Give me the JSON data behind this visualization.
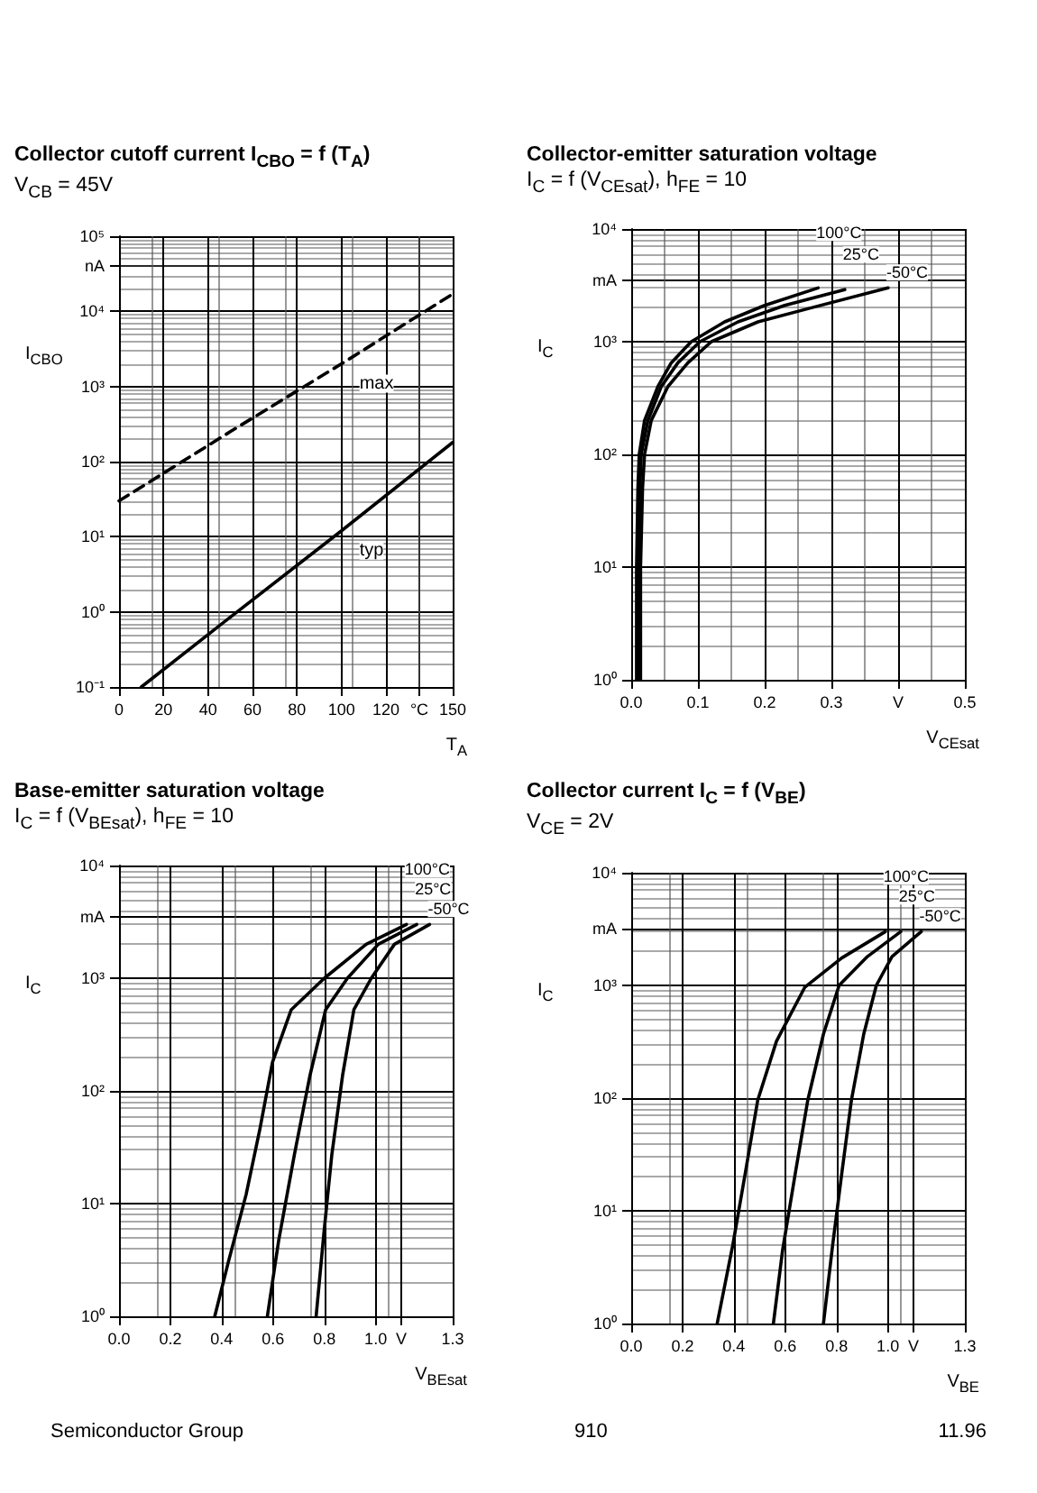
{
  "chart_data": [
    {
      "type": "line",
      "title": "Collector cutoff current I$_{CBO}$ = f (T$_{A}$)",
      "subtitle": "V$_{CB}$ = 45V",
      "xlabel": "T$_{A}$",
      "ylabel": "I$_{CBO}$",
      "log": "y",
      "grid": true,
      "marker": "none",
      "xlim": [
        0,
        150
      ],
      "ylim": [
        0.1,
        100000
      ],
      "xticks": [
        0,
        20,
        40,
        60,
        80,
        100,
        120,
        {
          "value": 135,
          "label": "°C"
        },
        150
      ],
      "yticks": [
        {
          "value": 0.1,
          "label": "10⁻¹"
        },
        {
          "value": 1,
          "label": "10⁰"
        },
        {
          "value": 10,
          "label": "10¹"
        },
        {
          "value": 100,
          "label": "10²"
        },
        {
          "value": 1000,
          "label": "10³"
        },
        {
          "value": 10000,
          "label": "10⁴"
        },
        {
          "value": 40000,
          "label": "nA"
        },
        {
          "value": 100000,
          "label": "10⁵"
        }
      ],
      "series": [
        {
          "name": "max",
          "color": "#000000",
          "line_style": "dashed",
          "x": [
            0,
            50,
            100,
            150
          ],
          "values": [
            30,
            250,
            2000,
            17000
          ]
        },
        {
          "name": "typ",
          "color": "#000000",
          "line_style": "solid",
          "x": [
            10,
            50,
            100,
            150
          ],
          "values": [
            0.1,
            0.85,
            12,
            180
          ]
        }
      ]
    },
    {
      "type": "line",
      "title": "Collector-emitter saturation voltage",
      "subtitle": "I$_{C}$ = f (V$_{CEsat}$), h$_{FE}$ = 10",
      "xlabel": "V$_{CEsat}$",
      "ylabel": "I$_{C}$",
      "log": "y",
      "grid": true,
      "marker": "none",
      "xlim": [
        0,
        0.5
      ],
      "ylim": [
        1,
        10000
      ],
      "xticks": [
        {
          "value": 0,
          "label": "0.0"
        },
        {
          "value": 0.1,
          "label": "0.1"
        },
        {
          "value": 0.2,
          "label": "0.2"
        },
        {
          "value": 0.3,
          "label": "0.3"
        },
        {
          "value": 0.4,
          "label": "V"
        },
        {
          "value": 0.5,
          "label": "0.5"
        }
      ],
      "yticks": [
        {
          "value": 1,
          "label": "10⁰"
        },
        {
          "value": 10,
          "label": "10¹"
        },
        {
          "value": 100,
          "label": "10²"
        },
        {
          "value": 1000,
          "label": "10³"
        },
        {
          "value": 3500,
          "label": "mA"
        },
        {
          "value": 10000,
          "label": "10⁴"
        }
      ],
      "series": [
        {
          "name": "100°C",
          "color": "#000000",
          "line_style": "solid",
          "x": [
            0.008,
            0.008,
            0.01,
            0.012,
            0.02,
            0.04,
            0.06,
            0.09,
            0.14,
            0.2,
            0.28
          ],
          "values": [
            1,
            10,
            50,
            100,
            200,
            400,
            650,
            1000,
            1500,
            2100,
            3000
          ]
        },
        {
          "name": "25°C",
          "color": "#000000",
          "line_style": "solid",
          "x": [
            0.011,
            0.011,
            0.013,
            0.015,
            0.025,
            0.045,
            0.07,
            0.103,
            0.16,
            0.23,
            0.32
          ],
          "values": [
            1,
            10,
            50,
            100,
            200,
            400,
            650,
            1000,
            1500,
            2100,
            2900
          ]
        },
        {
          "name": "-50°C",
          "color": "#000000",
          "line_style": "solid",
          "x": [
            0.014,
            0.014,
            0.017,
            0.02,
            0.03,
            0.055,
            0.085,
            0.12,
            0.19,
            0.27,
            0.385
          ],
          "values": [
            1,
            10,
            50,
            100,
            200,
            400,
            650,
            1000,
            1500,
            2000,
            3000
          ]
        }
      ]
    },
    {
      "type": "line",
      "title": "Base-emitter saturation voltage",
      "subtitle": "I$_{C}$ = f (V$_{BEsat}$), h$_{FE}$ = 10",
      "xlabel": "V$_{BEsat}$",
      "ylabel": "I$_{C}$",
      "log": "y",
      "grid": true,
      "marker": "none",
      "xlim": [
        0,
        1.3
      ],
      "ylim": [
        1,
        10000
      ],
      "xticks": [
        {
          "value": 0,
          "label": "0.0"
        },
        {
          "value": 0.2,
          "label": "0.2"
        },
        {
          "value": 0.4,
          "label": "0.4"
        },
        {
          "value": 0.6,
          "label": "0.6"
        },
        {
          "value": 0.8,
          "label": "0.8"
        },
        {
          "value": 1,
          "label": "1.0"
        },
        {
          "value": 1.1,
          "label": "V"
        },
        {
          "value": 1.3,
          "label": "1.3"
        }
      ],
      "yticks": [
        {
          "value": 1,
          "label": "10⁰"
        },
        {
          "value": 10,
          "label": "10¹"
        },
        {
          "value": 100,
          "label": "10²"
        },
        {
          "value": 1000,
          "label": "10³"
        },
        {
          "value": 3500,
          "label": "mA"
        },
        {
          "value": 10000,
          "label": "10⁴"
        }
      ],
      "series": [
        {
          "name": "-50°C",
          "color": "#000000",
          "line_style": "solid",
          "x": [
            0.768,
            0.798,
            0.829,
            0.871,
            0.915,
            0.983,
            1.073,
            1.21
          ],
          "values": [
            1,
            5.4,
            27,
            137,
            525,
            1000,
            2000,
            3000
          ]
        },
        {
          "name": "25°C",
          "color": "#000000",
          "line_style": "solid",
          "x": [
            0.578,
            0.622,
            0.683,
            0.744,
            0.805,
            0.89,
            1.01,
            1.16
          ],
          "values": [
            1,
            4.7,
            27,
            137,
            525,
            1000,
            2000,
            3000
          ]
        },
        {
          "name": "100°C",
          "color": "#000000",
          "line_style": "solid",
          "x": [
            0.373,
            0.427,
            0.495,
            0.549,
            0.598,
            0.671,
            0.8,
            0.963,
            1.12
          ],
          "values": [
            1,
            3.1,
            12,
            46,
            180,
            525,
            1000,
            2000,
            3000
          ]
        }
      ]
    },
    {
      "type": "line",
      "title": "Collector current I$_{C}$ = f (V$_{BE}$)",
      "subtitle": "V$_{CE}$ = 2V",
      "xlabel": "V$_{BE}$",
      "ylabel": "I$_{C}$",
      "log": "y",
      "grid": true,
      "marker": "none",
      "xlim": [
        0,
        1.3
      ],
      "ylim": [
        1,
        10000
      ],
      "xticks": [
        {
          "value": 0,
          "label": "0.0"
        },
        {
          "value": 0.2,
          "label": "0.2"
        },
        {
          "value": 0.4,
          "label": "0.4"
        },
        {
          "value": 0.6,
          "label": "0.6"
        },
        {
          "value": 0.8,
          "label": "0.8"
        },
        {
          "value": 1,
          "label": "1.0"
        },
        {
          "value": 1.1,
          "label": "V"
        },
        {
          "value": 1.3,
          "label": "1.3"
        }
      ],
      "yticks": [
        {
          "value": 1,
          "label": "10⁰"
        },
        {
          "value": 10,
          "label": "10¹"
        },
        {
          "value": 100,
          "label": "10²"
        },
        {
          "value": 1000,
          "label": "10³"
        },
        {
          "value": 3200,
          "label": "mA"
        },
        {
          "value": 10000,
          "label": "10⁴"
        }
      ],
      "series": [
        {
          "name": "-50°C",
          "color": "#000000",
          "line_style": "solid",
          "x": [
            0.749,
            0.785,
            0.821,
            0.858,
            0.906,
            0.955,
            1.016,
            1.13
          ],
          "values": [
            1,
            5,
            22,
            96,
            370,
            1000,
            1800,
            3000
          ]
        },
        {
          "name": "25°C",
          "color": "#000000",
          "line_style": "solid",
          "x": [
            0.554,
            0.59,
            0.64,
            0.688,
            0.749,
            0.81,
            0.92,
            1.05
          ],
          "values": [
            1,
            4.5,
            22,
            96,
            370,
            1000,
            1800,
            3000
          ]
        },
        {
          "name": "100°C",
          "color": "#000000",
          "line_style": "solid",
          "x": [
            0.335,
            0.396,
            0.445,
            0.493,
            0.566,
            0.676,
            0.82,
            0.99
          ],
          "values": [
            1,
            5,
            22,
            96,
            320,
            960,
            1750,
            3000
          ]
        }
      ],
      "annotations": [
        "Semiconductor Group",
        "910",
        "11.96"
      ]
    }
  ]
}
